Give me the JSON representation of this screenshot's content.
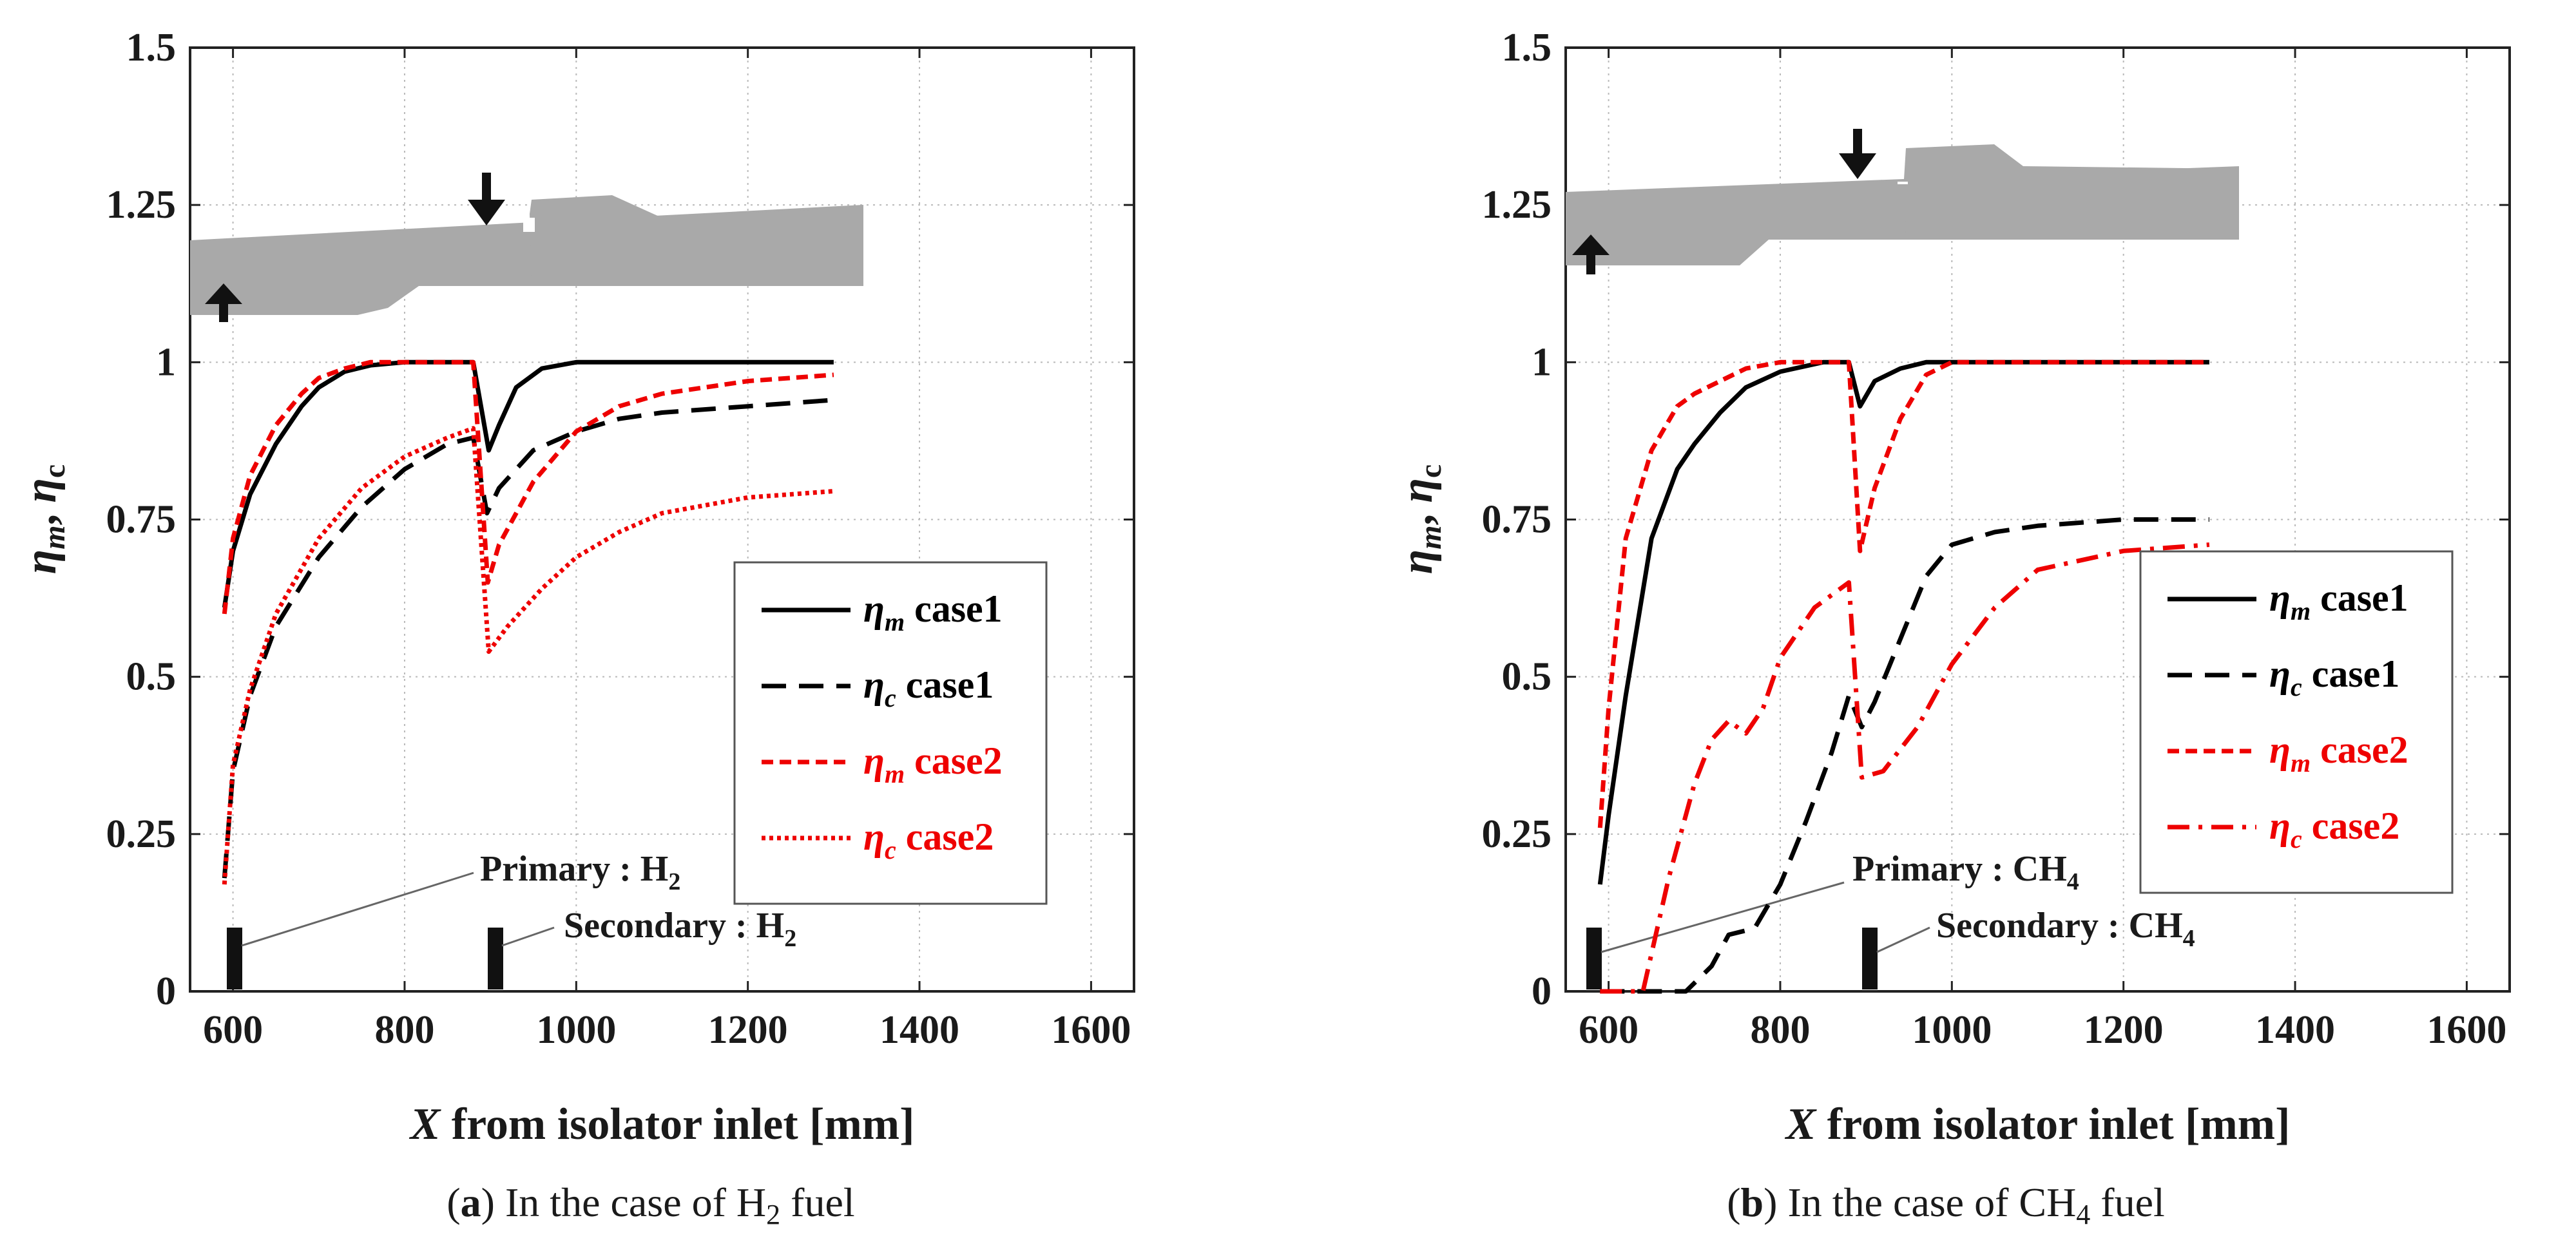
{
  "figure": {
    "panels": [
      {
        "caption": {
          "letter": "a",
          "text_before": ") In the case of H",
          "sub": "2",
          "text_after": " fuel"
        },
        "ylabel": {
          "eta1": "η",
          "sub1": "m",
          "sep": ", ",
          "eta2": "η",
          "sub2": "c"
        },
        "xlabel": {
          "var": "X",
          "rest": " from isolator inlet [mm]"
        },
        "annotations": {
          "primary": {
            "text": "Primary : H",
            "sub": "2"
          },
          "secondary": {
            "text": "Secondary : H",
            "sub": "2"
          }
        },
        "legend": [
          {
            "sym": "η",
            "sub": "m",
            "text": " case1",
            "color": "#000000",
            "dash": "solid"
          },
          {
            "sym": "η",
            "sub": "c",
            "text": " case1",
            "color": "#000000",
            "dash": "dash"
          },
          {
            "sym": "η",
            "sub": "m",
            "text": " case2",
            "color": "#ee0000",
            "dash": "shortdash"
          },
          {
            "sym": "η",
            "sub": "c",
            "text": " case2",
            "color": "#ee0000",
            "dash": "dot"
          }
        ]
      },
      {
        "caption": {
          "letter": "b",
          "text_before": ") In the case of CH",
          "sub": "4",
          "text_after": " fuel"
        },
        "ylabel": {
          "eta1": "η",
          "sub1": "m",
          "sep": ", ",
          "eta2": "η",
          "sub2": "c"
        },
        "xlabel": {
          "var": "X",
          "rest": " from isolator inlet [mm]"
        },
        "annotations": {
          "primary": {
            "text": "Primary : CH",
            "sub": "4"
          },
          "secondary": {
            "text": "Secondary : CH",
            "sub": "4"
          }
        },
        "legend": [
          {
            "sym": "η",
            "sub": "m",
            "text": " case1",
            "color": "#000000",
            "dash": "solid"
          },
          {
            "sym": "η",
            "sub": "c",
            "text": " case1",
            "color": "#000000",
            "dash": "dash"
          },
          {
            "sym": "η",
            "sub": "m",
            "text": " case2",
            "color": "#ee0000",
            "dash": "shortdash"
          },
          {
            "sym": "η",
            "sub": "c",
            "text": " case2",
            "color": "#ee0000",
            "dash": "dashdot"
          }
        ]
      }
    ]
  },
  "chart_data": [
    {
      "type": "line",
      "xlim": [
        550,
        1650
      ],
      "ylim": [
        0,
        1.5
      ],
      "xticks": [
        "600",
        "800",
        "1000",
        "1200",
        "1400",
        "1600"
      ],
      "yticks": [
        "0",
        "0.25",
        "0.5",
        "0.75",
        "1",
        "1.25",
        "1.5"
      ],
      "grid": true,
      "legend_position": "right",
      "series": [
        {
          "label": "ηm case1",
          "color": "#000000",
          "dash": "solid",
          "x": [
            590,
            600,
            620,
            650,
            680,
            700,
            730,
            760,
            800,
            850,
            880,
            898,
            910,
            930,
            960,
            1000,
            1100,
            1200,
            1300
          ],
          "y": [
            0.61,
            0.7,
            0.79,
            0.87,
            0.93,
            0.96,
            0.985,
            0.995,
            1.0,
            1.0,
            1.0,
            0.86,
            0.9,
            0.96,
            0.99,
            1.0,
            1.0,
            1.0,
            1.0
          ]
        },
        {
          "label": "ηc case1",
          "color": "#000000",
          "dash": "dash",
          "x": [
            590,
            600,
            620,
            650,
            700,
            750,
            800,
            850,
            880,
            896,
            910,
            950,
            1000,
            1050,
            1100,
            1200,
            1300
          ],
          "y": [
            0.18,
            0.35,
            0.47,
            0.58,
            0.69,
            0.77,
            0.83,
            0.87,
            0.88,
            0.76,
            0.8,
            0.86,
            0.89,
            0.91,
            0.92,
            0.93,
            0.94
          ]
        },
        {
          "label": "ηm case2",
          "color": "#ee0000",
          "dash": "shortdash",
          "x": [
            590,
            600,
            620,
            650,
            680,
            700,
            730,
            760,
            800,
            850,
            880,
            897,
            910,
            950,
            1000,
            1050,
            1100,
            1200,
            1300
          ],
          "y": [
            0.6,
            0.72,
            0.82,
            0.9,
            0.95,
            0.975,
            0.99,
            1.0,
            1.0,
            1.0,
            1.0,
            0.65,
            0.71,
            0.81,
            0.89,
            0.93,
            0.95,
            0.97,
            0.98
          ]
        },
        {
          "label": "ηc case2",
          "color": "#ee0000",
          "dash": "dot",
          "x": [
            590,
            600,
            620,
            650,
            700,
            750,
            800,
            850,
            880,
            898,
            920,
            960,
            1000,
            1050,
            1100,
            1200,
            1300
          ],
          "y": [
            0.17,
            0.36,
            0.48,
            0.6,
            0.72,
            0.8,
            0.85,
            0.88,
            0.895,
            0.54,
            0.58,
            0.64,
            0.69,
            0.73,
            0.76,
            0.785,
            0.795
          ]
        }
      ]
    },
    {
      "type": "line",
      "xlim": [
        550,
        1650
      ],
      "ylim": [
        0,
        1.5
      ],
      "xticks": [
        "600",
        "800",
        "1000",
        "1200",
        "1400",
        "1600"
      ],
      "yticks": [
        "0",
        "0.25",
        "0.5",
        "0.75",
        "1",
        "1.25",
        "1.5"
      ],
      "grid": true,
      "legend_position": "right",
      "series": [
        {
          "label": "ηm case1",
          "color": "#000000",
          "dash": "solid",
          "x": [
            590,
            600,
            620,
            650,
            680,
            700,
            730,
            760,
            800,
            850,
            880,
            893,
            910,
            940,
            970,
            1000,
            1100,
            1200,
            1300
          ],
          "y": [
            0.17,
            0.28,
            0.47,
            0.72,
            0.83,
            0.87,
            0.92,
            0.96,
            0.985,
            1.0,
            1.0,
            0.93,
            0.97,
            0.99,
            1.0,
            1.0,
            1.0,
            1.0,
            1.0
          ]
        },
        {
          "label": "ηc case1",
          "color": "#000000",
          "dash": "dash",
          "x": [
            590,
            650,
            690,
            720,
            740,
            770,
            800,
            830,
            860,
            880,
            895,
            910,
            940,
            970,
            1000,
            1050,
            1100,
            1200,
            1300
          ],
          "y": [
            0,
            0,
            0,
            0.04,
            0.09,
            0.1,
            0.17,
            0.27,
            0.38,
            0.47,
            0.42,
            0.46,
            0.56,
            0.66,
            0.71,
            0.73,
            0.74,
            0.75,
            0.75
          ]
        },
        {
          "label": "ηm case2",
          "color": "#ee0000",
          "dash": "shortdash",
          "x": [
            590,
            600,
            620,
            650,
            680,
            700,
            730,
            760,
            800,
            850,
            880,
            893,
            910,
            940,
            970,
            1000,
            1100,
            1200,
            1300
          ],
          "y": [
            0.26,
            0.45,
            0.72,
            0.86,
            0.93,
            0.95,
            0.97,
            0.99,
            1.0,
            1.0,
            1.0,
            0.7,
            0.8,
            0.91,
            0.98,
            1.0,
            1.0,
            1.0,
            1.0
          ]
        },
        {
          "label": "ηc case2",
          "color": "#ee0000",
          "dash": "dashdot",
          "x": [
            590,
            620,
            640,
            670,
            700,
            720,
            740,
            760,
            780,
            800,
            840,
            880,
            895,
            920,
            960,
            1000,
            1050,
            1100,
            1200,
            1300
          ],
          "y": [
            0,
            0,
            0,
            0.18,
            0.33,
            0.4,
            0.43,
            0.41,
            0.45,
            0.53,
            0.61,
            0.65,
            0.34,
            0.35,
            0.42,
            0.52,
            0.61,
            0.67,
            0.7,
            0.71
          ]
        }
      ]
    }
  ]
}
